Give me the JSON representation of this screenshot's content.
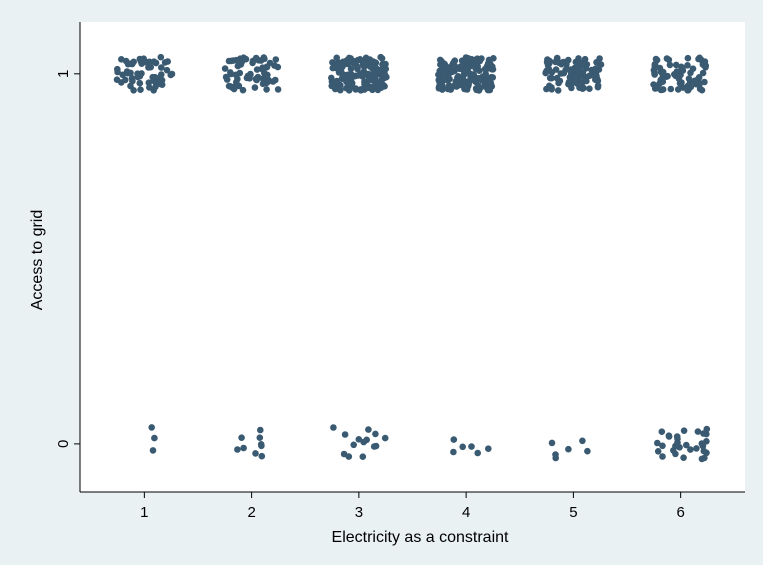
{
  "chart_data": {
    "type": "scatter",
    "title": "",
    "xlabel": "Electricity as a constraint",
    "ylabel": "Access to grid",
    "x_ticks": [
      "1",
      "2",
      "3",
      "4",
      "5",
      "6"
    ],
    "y_ticks": [
      "0",
      "1"
    ],
    "xlim": [
      0.4,
      6.6
    ],
    "ylim": [
      -0.13,
      1.14
    ],
    "grid": false,
    "jitter": true,
    "marker_color": "#3a5a72",
    "background_outer": "#eaf1f3",
    "background_plot": "#ffffff",
    "points": [
      {
        "x": 1,
        "y": 0,
        "count": 3
      },
      {
        "x": 1,
        "y": 1,
        "count": 60
      },
      {
        "x": 2,
        "y": 0,
        "count": 9
      },
      {
        "x": 2,
        "y": 1,
        "count": 65
      },
      {
        "x": 3,
        "y": 0,
        "count": 14
      },
      {
        "x": 3,
        "y": 1,
        "count": 130
      },
      {
        "x": 4,
        "y": 0,
        "count": 6
      },
      {
        "x": 4,
        "y": 1,
        "count": 150
      },
      {
        "x": 5,
        "y": 0,
        "count": 6
      },
      {
        "x": 5,
        "y": 1,
        "count": 95
      },
      {
        "x": 6,
        "y": 0,
        "count": 30
      },
      {
        "x": 6,
        "y": 1,
        "count": 75
      }
    ]
  }
}
